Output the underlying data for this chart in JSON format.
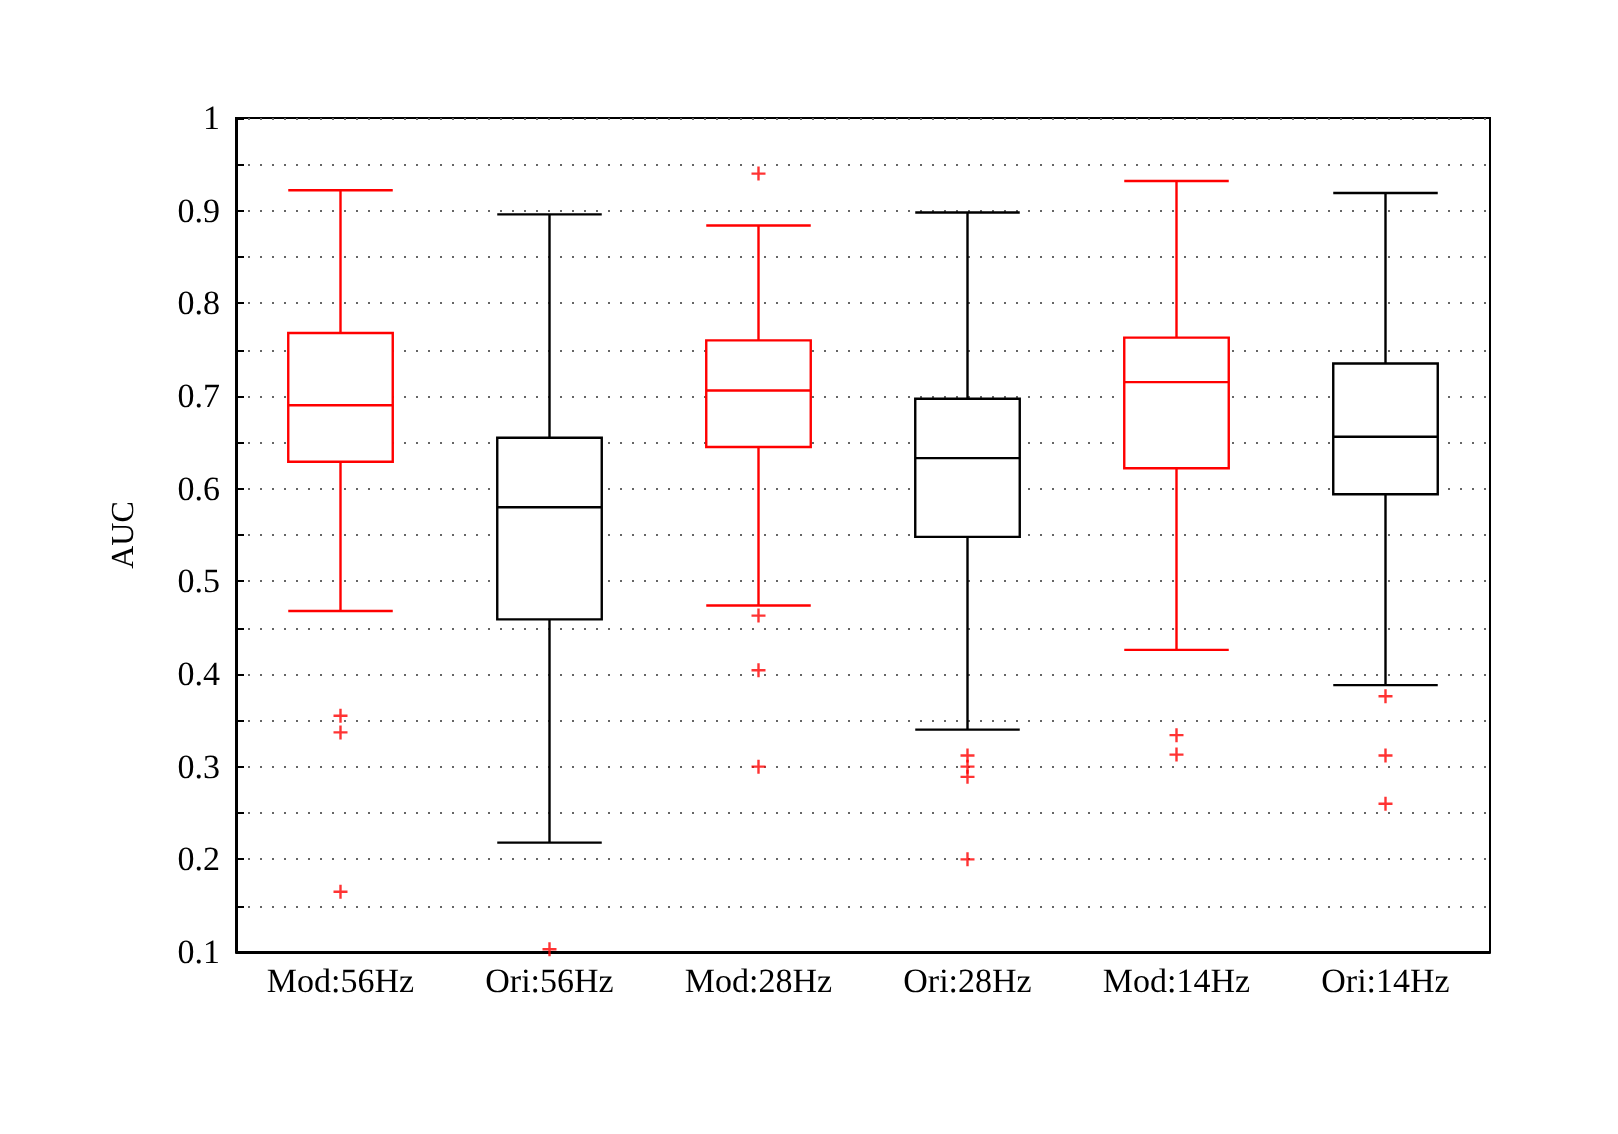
{
  "chart_data": {
    "type": "box",
    "ylabel": "AUC",
    "categories": [
      "Mod:56Hz",
      "Ori:56Hz",
      "Mod:28Hz",
      "Ori:28Hz",
      "Mod:14Hz",
      "Ori:14Hz"
    ],
    "colors": [
      "#ff0000",
      "#000000",
      "#ff0000",
      "#000000",
      "#ff0000",
      "#000000"
    ],
    "boxes": [
      {
        "low": 0.468,
        "q1": 0.629,
        "median": 0.69,
        "q3": 0.768,
        "high": 0.922,
        "outliers": [
          0.355,
          0.337,
          0.165
        ]
      },
      {
        "low": 0.218,
        "q1": 0.459,
        "median": 0.58,
        "q3": 0.655,
        "high": 0.896,
        "outliers": [
          0.103
        ]
      },
      {
        "low": 0.474,
        "q1": 0.645,
        "median": 0.706,
        "q3": 0.76,
        "high": 0.884,
        "outliers": [
          0.94,
          0.463,
          0.404,
          0.3
        ]
      },
      {
        "low": 0.34,
        "q1": 0.548,
        "median": 0.633,
        "q3": 0.697,
        "high": 0.898,
        "outliers": [
          0.312,
          0.3,
          0.289,
          0.2
        ]
      },
      {
        "low": 0.426,
        "q1": 0.622,
        "median": 0.715,
        "q3": 0.763,
        "high": 0.932,
        "outliers": [
          0.334,
          0.313
        ]
      },
      {
        "low": 0.388,
        "q1": 0.594,
        "median": 0.656,
        "q3": 0.735,
        "high": 0.919,
        "outliers": [
          0.376,
          0.312,
          0.26
        ]
      }
    ],
    "ylim": [
      0.1,
      1
    ],
    "yticks": [
      0.1,
      {
        "value": 0.15,
        "label": null
      },
      0.2,
      {
        "value": 0.25,
        "label": null
      },
      0.3,
      {
        "value": 0.35,
        "label": null
      },
      0.4,
      {
        "value": 0.45,
        "label": null
      },
      0.5,
      {
        "value": 0.55,
        "label": null
      },
      0.6,
      {
        "value": 0.65,
        "label": null
      },
      0.7,
      {
        "value": 0.75,
        "label": null
      },
      0.8,
      {
        "value": 0.85,
        "label": null
      },
      0.9,
      {
        "value": 0.95,
        "label": null
      },
      1
    ],
    "grid": "y",
    "marker": "cross"
  }
}
